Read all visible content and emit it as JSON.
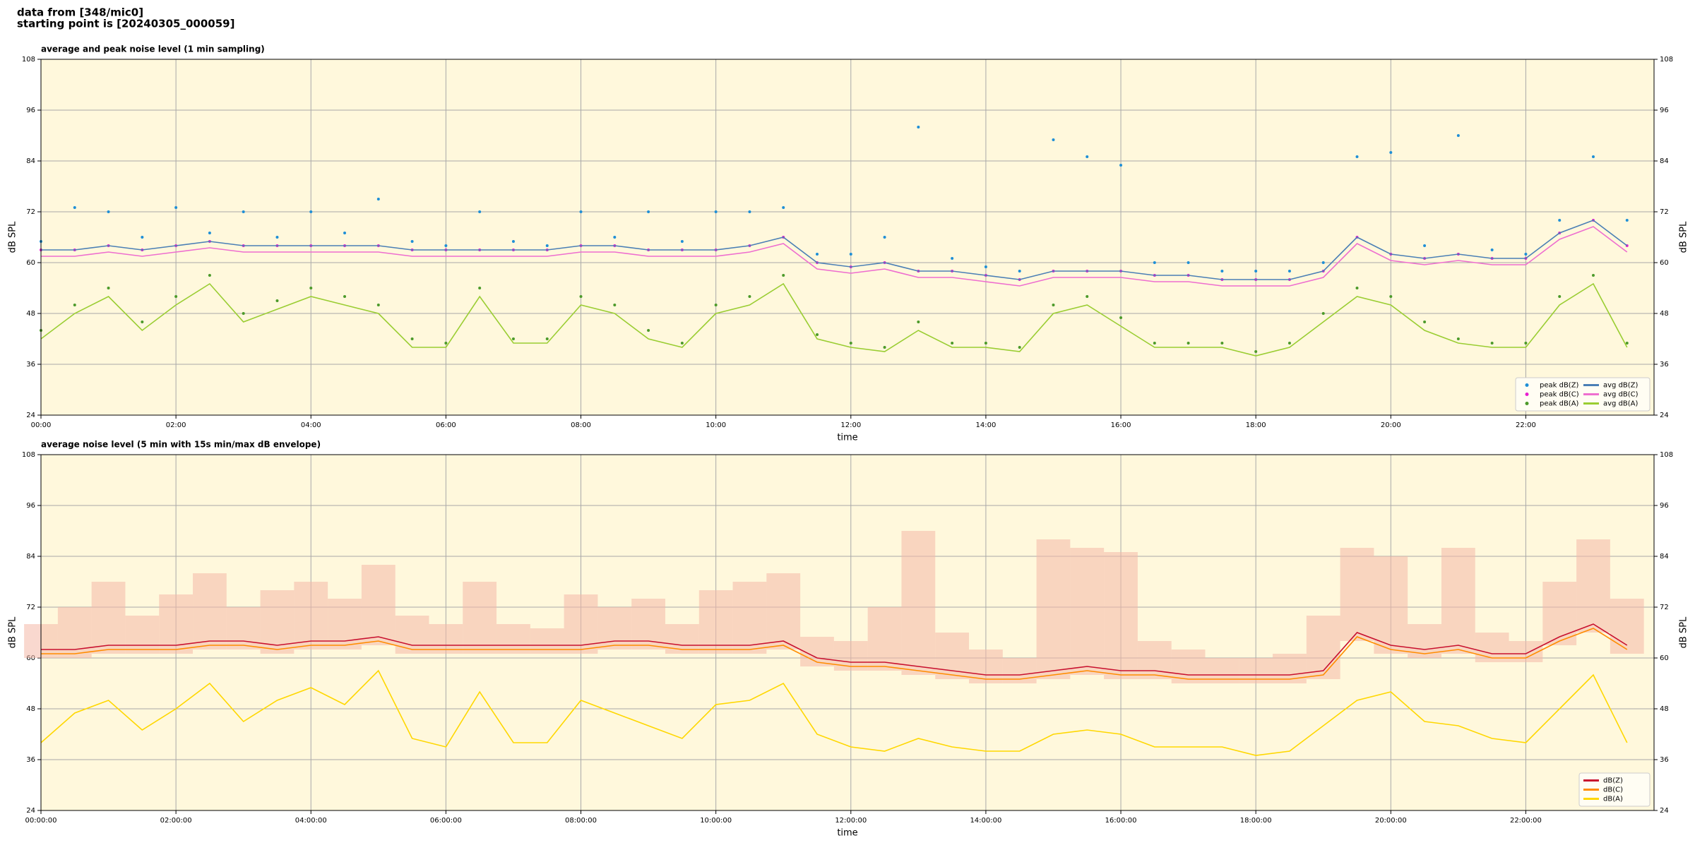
{
  "header": {
    "line1": "data from [348/mic0]",
    "line2": "starting point is [20240305_000059]"
  },
  "chart_data": [
    {
      "type": "line",
      "title": "average and peak noise level (1 min sampling)",
      "xlabel": "time",
      "ylabel": "dB SPL",
      "background": "#fff8dc",
      "grid": true,
      "legend": "lower right",
      "xlim": [
        0,
        23.9
      ],
      "ylim": [
        24,
        108
      ],
      "xticks": [
        {
          "value": 0,
          "label": "00:00"
        },
        {
          "value": 2,
          "label": "02:00"
        },
        {
          "value": 4,
          "label": "04:00"
        },
        {
          "value": 6,
          "label": "06:00"
        },
        {
          "value": 8,
          "label": "08:00"
        },
        {
          "value": 10,
          "label": "10:00"
        },
        {
          "value": 12,
          "label": "12:00"
        },
        {
          "value": 14,
          "label": "14:00"
        },
        {
          "value": 16,
          "label": "16:00"
        },
        {
          "value": 18,
          "label": "18:00"
        },
        {
          "value": 20,
          "label": "20:00"
        },
        {
          "value": 22,
          "label": "22:00"
        }
      ],
      "yticks": [
        24,
        36,
        48,
        60,
        72,
        84,
        96,
        108
      ],
      "x": [
        0,
        0.5,
        1,
        1.5,
        2,
        2.5,
        3,
        3.5,
        4,
        4.5,
        5,
        5.5,
        6,
        6.5,
        7,
        7.5,
        8,
        8.5,
        9,
        9.5,
        10,
        10.5,
        11,
        11.5,
        12,
        12.5,
        13,
        13.5,
        14,
        14.5,
        15,
        15.5,
        16,
        16.5,
        17,
        17.5,
        18,
        18.5,
        19,
        19.5,
        20,
        20.5,
        21,
        21.5,
        22,
        22.5,
        23,
        23.5
      ],
      "series": [
        {
          "name": "peak dB(Z)",
          "style": "scatter",
          "color": "#1f8fd6",
          "values": [
            65,
            73,
            72,
            66,
            73,
            67,
            72,
            66,
            72,
            67,
            75,
            65,
            64,
            72,
            65,
            64,
            72,
            66,
            72,
            65,
            72,
            72,
            73,
            62,
            62,
            66,
            92,
            61,
            59,
            58,
            89,
            85,
            83,
            60,
            60,
            58,
            58,
            58,
            60,
            85,
            86,
            64,
            90,
            63,
            62,
            70,
            85,
            70
          ]
        },
        {
          "name": "peak dB(C)",
          "style": "scatter",
          "color": "#e81fd0",
          "values": [
            63,
            63,
            64,
            63,
            64,
            65,
            64,
            64,
            64,
            64,
            64,
            63,
            63,
            63,
            63,
            63,
            64,
            64,
            63,
            63,
            63,
            64,
            66,
            60,
            59,
            60,
            58,
            58,
            57,
            56,
            58,
            58,
            58,
            57,
            57,
            56,
            56,
            56,
            58,
            66,
            62,
            61,
            62,
            61,
            61,
            67,
            70,
            64
          ]
        },
        {
          "name": "peak dB(A)",
          "style": "scatter",
          "color": "#4c9a2a",
          "values": [
            44,
            50,
            54,
            46,
            52,
            57,
            48,
            51,
            54,
            52,
            50,
            42,
            41,
            54,
            42,
            42,
            52,
            50,
            44,
            41,
            50,
            52,
            57,
            43,
            41,
            40,
            46,
            41,
            41,
            40,
            50,
            52,
            47,
            41,
            41,
            41,
            39,
            41,
            48,
            54,
            52,
            46,
            42,
            41,
            41,
            52,
            57,
            41
          ]
        },
        {
          "name": "avg dB(Z)",
          "style": "line",
          "color": "#4a7fb5",
          "values": [
            63,
            63,
            64,
            63,
            64,
            65,
            64,
            64,
            64,
            64,
            64,
            63,
            63,
            63,
            63,
            63,
            64,
            64,
            63,
            63,
            63,
            64,
            66,
            60,
            59,
            60,
            58,
            58,
            57,
            56,
            58,
            58,
            58,
            57,
            57,
            56,
            56,
            56,
            58,
            66,
            62,
            61,
            62,
            61,
            61,
            67,
            70,
            64
          ]
        },
        {
          "name": "avg dB(C)",
          "style": "line",
          "color": "#ee6ecf",
          "values": [
            61.5,
            61.5,
            62.5,
            61.5,
            62.5,
            63.5,
            62.5,
            62.5,
            62.5,
            62.5,
            62.5,
            61.5,
            61.5,
            61.5,
            61.5,
            61.5,
            62.5,
            62.5,
            61.5,
            61.5,
            61.5,
            62.5,
            64.5,
            58.5,
            57.5,
            58.5,
            56.5,
            56.5,
            55.5,
            54.5,
            56.5,
            56.5,
            56.5,
            55.5,
            55.5,
            54.5,
            54.5,
            54.5,
            56.5,
            64.5,
            60.5,
            59.5,
            60.5,
            59.5,
            59.5,
            65.5,
            68.5,
            62.5
          ]
        },
        {
          "name": "avg dB(A)",
          "style": "line",
          "color": "#9acd32",
          "values": [
            42,
            48,
            52,
            44,
            50,
            55,
            46,
            49,
            52,
            50,
            48,
            40,
            40,
            52,
            41,
            41,
            50,
            48,
            42,
            40,
            48,
            50,
            55,
            42,
            40,
            39,
            44,
            40,
            40,
            39,
            48,
            50,
            45,
            40,
            40,
            40,
            38,
            40,
            46,
            52,
            50,
            44,
            41,
            40,
            40,
            50,
            55,
            40
          ]
        }
      ]
    },
    {
      "type": "line",
      "title": "average noise level (5 min with 15s min/max dB envelope)",
      "xlabel": "time",
      "ylabel": "dB SPL",
      "background": "#fff8dc",
      "grid": true,
      "legend": "lower right",
      "xlim": [
        0,
        23.9
      ],
      "ylim": [
        24,
        108
      ],
      "xticks": [
        {
          "value": 0,
          "label": "00:00:00"
        },
        {
          "value": 2,
          "label": "02:00:00"
        },
        {
          "value": 4,
          "label": "04:00:00"
        },
        {
          "value": 6,
          "label": "06:00:00"
        },
        {
          "value": 8,
          "label": "08:00:00"
        },
        {
          "value": 10,
          "label": "10:00:00"
        },
        {
          "value": 12,
          "label": "12:00:00"
        },
        {
          "value": 14,
          "label": "14:00:00"
        },
        {
          "value": 16,
          "label": "16:00:00"
        },
        {
          "value": 18,
          "label": "18:00:00"
        },
        {
          "value": 20,
          "label": "20:00:00"
        },
        {
          "value": 22,
          "label": "22:00:00"
        }
      ],
      "yticks": [
        24,
        36,
        48,
        60,
        72,
        84,
        96,
        108
      ],
      "x": [
        0,
        0.5,
        1,
        1.5,
        2,
        2.5,
        3,
        3.5,
        4,
        4.5,
        5,
        5.5,
        6,
        6.5,
        7,
        7.5,
        8,
        8.5,
        9,
        9.5,
        10,
        10.5,
        11,
        11.5,
        12,
        12.5,
        13,
        13.5,
        14,
        14.5,
        15,
        15.5,
        16,
        16.5,
        17,
        17.5,
        18,
        18.5,
        19,
        19.5,
        20,
        20.5,
        21,
        21.5,
        22,
        22.5,
        23,
        23.5
      ],
      "envelope": {
        "color": "#f4b8a8",
        "lower": [
          60,
          60,
          61,
          61,
          61,
          62,
          62,
          61,
          62,
          62,
          63,
          61,
          61,
          61,
          61,
          61,
          61,
          62,
          62,
          61,
          61,
          61,
          62,
          58,
          57,
          57,
          56,
          55,
          54,
          54,
          55,
          56,
          55,
          55,
          54,
          54,
          54,
          54,
          55,
          64,
          61,
          60,
          61,
          59,
          59,
          63,
          66,
          61
        ],
        "upper": [
          68,
          72,
          78,
          70,
          75,
          80,
          72,
          76,
          78,
          74,
          82,
          70,
          68,
          78,
          68,
          67,
          75,
          72,
          74,
          68,
          76,
          78,
          80,
          65,
          64,
          72,
          90,
          66,
          62,
          60,
          88,
          86,
          85,
          64,
          62,
          60,
          60,
          61,
          70,
          86,
          84,
          68,
          86,
          66,
          64,
          78,
          88,
          74
        ]
      },
      "series": [
        {
          "name": "dB(Z)",
          "style": "line",
          "color": "#c8102e",
          "values": [
            62,
            62,
            63,
            63,
            63,
            64,
            64,
            63,
            64,
            64,
            65,
            63,
            63,
            63,
            63,
            63,
            63,
            64,
            64,
            63,
            63,
            63,
            64,
            60,
            59,
            59,
            58,
            57,
            56,
            56,
            57,
            58,
            57,
            57,
            56,
            56,
            56,
            56,
            57,
            66,
            63,
            62,
            63,
            61,
            61,
            65,
            68,
            63
          ]
        },
        {
          "name": "dB(C)",
          "style": "line",
          "color": "#ff8c00",
          "values": [
            61,
            61,
            62,
            62,
            62,
            63,
            63,
            62,
            63,
            63,
            64,
            62,
            62,
            62,
            62,
            62,
            62,
            63,
            63,
            62,
            62,
            62,
            63,
            59,
            58,
            58,
            57,
            56,
            55,
            55,
            56,
            57,
            56,
            56,
            55,
            55,
            55,
            55,
            56,
            65,
            62,
            61,
            62,
            60,
            60,
            64,
            67,
            62
          ]
        },
        {
          "name": "dB(A)",
          "style": "line",
          "color": "#ffd700",
          "values": [
            40,
            47,
            50,
            43,
            48,
            54,
            45,
            50,
            53,
            49,
            57,
            41,
            39,
            52,
            40,
            40,
            50,
            47,
            44,
            41,
            49,
            50,
            54,
            42,
            39,
            38,
            41,
            39,
            38,
            38,
            42,
            43,
            42,
            39,
            39,
            39,
            37,
            38,
            44,
            50,
            52,
            45,
            44,
            41,
            40,
            48,
            56,
            40
          ]
        }
      ]
    }
  ]
}
